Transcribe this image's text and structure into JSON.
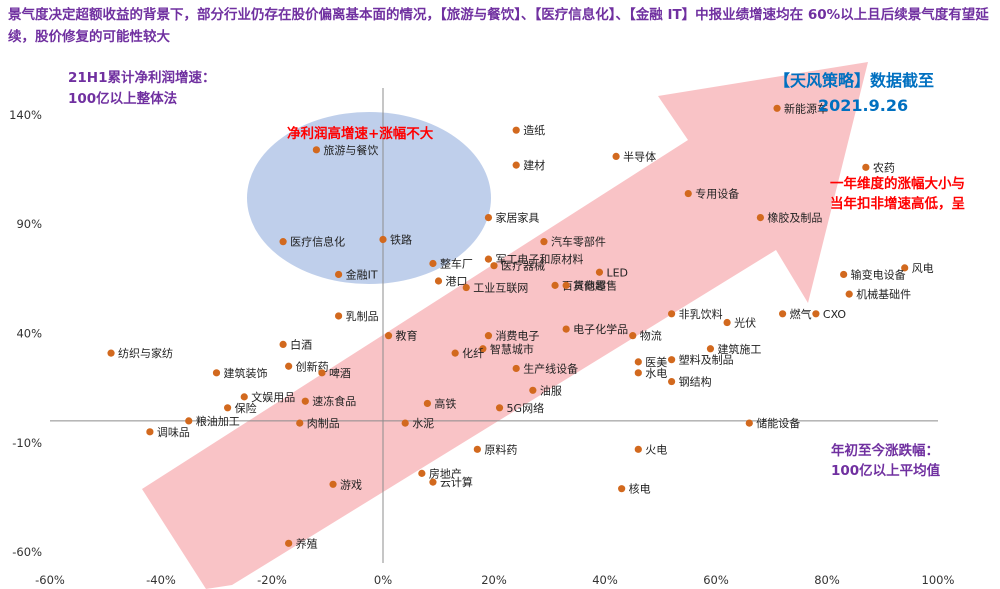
{
  "headline": "景气度决定超额收益的背景下，部分行业仍存在股价偏离基本面的情况，【旅游与餐饮】、【医疗信息化】、【金融 IT】中报业绩增速均在 60%以上且后续景气度有望延续，股价修复的可能性较大",
  "colors": {
    "dot": "#D2691E",
    "ellipse": "#B4C7E7",
    "arrow": "#F8B4B8",
    "purple": "#7030A0",
    "red": "#FF0000",
    "blue": "#0070C0"
  },
  "annotations": {
    "top_left": [
      "21H1累计净利润增速：",
      "100亿以上整体法"
    ],
    "ellipse_title": "净利润高增速+涨幅不大",
    "source": [
      "【天风策略】数据截至",
      "2021.9.26"
    ],
    "right_note": [
      "一年维度的涨幅大小与",
      "当年扣非增速高低，呈"
    ],
    "bottom_right": [
      "年初至今涨跌幅：",
      "100亿以上平均值"
    ]
  },
  "chart_data": {
    "type": "scatter",
    "xlim": [
      -0.6,
      1.0
    ],
    "ylim": [
      -0.65,
      1.5
    ],
    "x_ticks": [
      -0.6,
      -0.4,
      -0.2,
      0,
      0.2,
      0.4,
      0.6,
      0.8,
      1.0
    ],
    "x_tick_labels": [
      "-60%",
      "-40%",
      "-20%",
      "0%",
      "20%",
      "40%",
      "60%",
      "80%",
      "100%"
    ],
    "y_ticks": [
      -0.6,
      -0.1,
      0.4,
      0.9,
      1.4
    ],
    "y_tick_labels": [
      "-60%",
      "-10%",
      "40%",
      "90%",
      "140%"
    ],
    "points": [
      {
        "label": "旅游与餐饮",
        "x": -0.12,
        "y": 1.24
      },
      {
        "label": "医疗信息化",
        "x": -0.18,
        "y": 0.82
      },
      {
        "label": "金融IT",
        "x": -0.08,
        "y": 0.67
      },
      {
        "label": "铁路",
        "x": 0.0,
        "y": 0.83
      },
      {
        "label": "造纸",
        "x": 0.24,
        "y": 1.33
      },
      {
        "label": "建材",
        "x": 0.24,
        "y": 1.17
      },
      {
        "label": "半导体",
        "x": 0.42,
        "y": 1.21
      },
      {
        "label": "新能源车",
        "x": 0.71,
        "y": 1.43
      },
      {
        "label": "农药",
        "x": 0.87,
        "y": 1.16
      },
      {
        "label": "专用设备",
        "x": 0.55,
        "y": 1.04
      },
      {
        "label": "橡胶及制品",
        "x": 0.68,
        "y": 0.93
      },
      {
        "label": "家居家具",
        "x": 0.19,
        "y": 0.93
      },
      {
        "label": "汽车零部件",
        "x": 0.29,
        "y": 0.82
      },
      {
        "label": "整车厂",
        "x": 0.09,
        "y": 0.72
      },
      {
        "label": "军工电子和原材料",
        "x": 0.19,
        "y": 0.74
      },
      {
        "label": "医疗器械",
        "x": 0.2,
        "y": 0.71
      },
      {
        "label": "LED",
        "x": 0.39,
        "y": 0.68
      },
      {
        "label": "港口",
        "x": 0.1,
        "y": 0.64
      },
      {
        "label": "工业互联网",
        "x": 0.15,
        "y": 0.61
      },
      {
        "label": "百货商超",
        "x": 0.31,
        "y": 0.62
      },
      {
        "label": "其他零售",
        "x": 0.33,
        "y": 0.62
      },
      {
        "label": "风电",
        "x": 0.94,
        "y": 0.7
      },
      {
        "label": "输变电设备",
        "x": 0.83,
        "y": 0.67
      },
      {
        "label": "机械基础件",
        "x": 0.84,
        "y": 0.58
      },
      {
        "label": "燃气",
        "x": 0.72,
        "y": 0.49
      },
      {
        "label": "CXO",
        "x": 0.78,
        "y": 0.49
      },
      {
        "label": "非乳饮料",
        "x": 0.52,
        "y": 0.49
      },
      {
        "label": "光伏",
        "x": 0.62,
        "y": 0.45
      },
      {
        "label": "乳制品",
        "x": -0.08,
        "y": 0.48
      },
      {
        "label": "电子化学品",
        "x": 0.33,
        "y": 0.42
      },
      {
        "label": "物流",
        "x": 0.45,
        "y": 0.39
      },
      {
        "label": "消费电子",
        "x": 0.19,
        "y": 0.39
      },
      {
        "label": "智慧城市",
        "x": 0.18,
        "y": 0.33
      },
      {
        "label": "教育",
        "x": 0.01,
        "y": 0.39
      },
      {
        "label": "化纤",
        "x": 0.13,
        "y": 0.31
      },
      {
        "label": "纺织与家纺",
        "x": -0.49,
        "y": 0.31
      },
      {
        "label": "建筑施工",
        "x": 0.59,
        "y": 0.33
      },
      {
        "label": "医美",
        "x": 0.46,
        "y": 0.27
      },
      {
        "label": "塑料及制品",
        "x": 0.52,
        "y": 0.28
      },
      {
        "label": "水电",
        "x": 0.46,
        "y": 0.22
      },
      {
        "label": "钢结构",
        "x": 0.52,
        "y": 0.18
      },
      {
        "label": "白酒",
        "x": -0.18,
        "y": 0.35
      },
      {
        "label": "创新药",
        "x": -0.17,
        "y": 0.25
      },
      {
        "label": "啤酒",
        "x": -0.11,
        "y": 0.22
      },
      {
        "label": "建筑装饰",
        "x": -0.3,
        "y": 0.22
      },
      {
        "label": "保险",
        "x": -0.28,
        "y": 0.06
      },
      {
        "label": "文娱用品",
        "x": -0.25,
        "y": 0.11
      },
      {
        "label": "速冻食品",
        "x": -0.14,
        "y": 0.09
      },
      {
        "label": "生产线设备",
        "x": 0.24,
        "y": 0.24
      },
      {
        "label": "油服",
        "x": 0.27,
        "y": 0.14
      },
      {
        "label": "5G网络",
        "x": 0.21,
        "y": 0.06
      },
      {
        "label": "高铁",
        "x": 0.08,
        "y": 0.08
      },
      {
        "label": "储能设备",
        "x": 0.66,
        "y": -0.01
      },
      {
        "label": "粮油加工",
        "x": -0.35,
        "y": 0.0
      },
      {
        "label": "调味品",
        "x": -0.42,
        "y": -0.05
      },
      {
        "label": "肉制品",
        "x": -0.15,
        "y": -0.01
      },
      {
        "label": "水泥",
        "x": 0.04,
        "y": -0.01
      },
      {
        "label": "原料药",
        "x": 0.17,
        "y": -0.13
      },
      {
        "label": "火电",
        "x": 0.46,
        "y": -0.13
      },
      {
        "label": "游戏",
        "x": -0.09,
        "y": -0.29
      },
      {
        "label": "房地产",
        "x": 0.07,
        "y": -0.24
      },
      {
        "label": "云计算",
        "x": 0.09,
        "y": -0.28
      },
      {
        "label": "核电",
        "x": 0.43,
        "y": -0.31
      },
      {
        "label": "养殖",
        "x": -0.17,
        "y": -0.56
      }
    ]
  }
}
